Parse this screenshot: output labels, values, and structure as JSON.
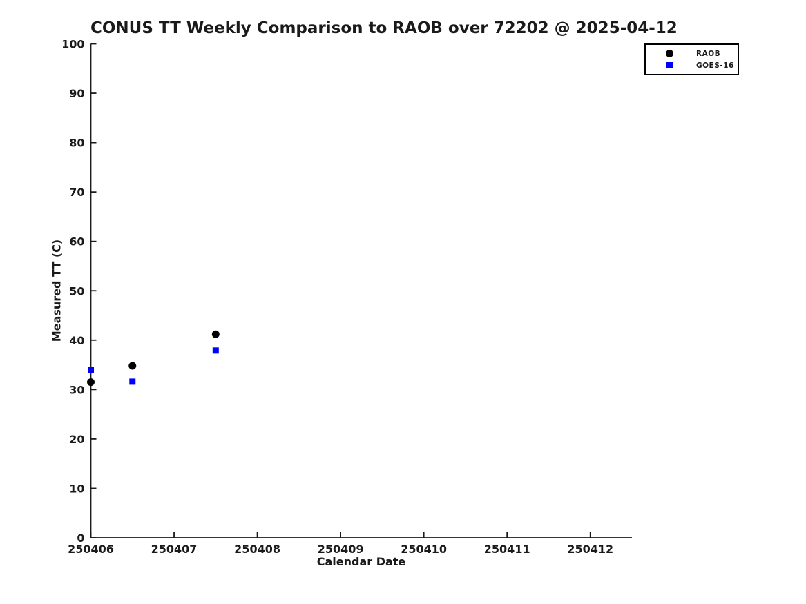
{
  "chart_data": {
    "type": "scatter",
    "title": "CONUS TT Weekly Comparison to RAOB over 72202 @ 2025-04-12",
    "xlabel": "Calendar Date",
    "ylabel": "Measured TT (C)",
    "xlim": [
      250406,
      250412.5
    ],
    "ylim": [
      0,
      100
    ],
    "xticks": [
      250406,
      250407,
      250408,
      250409,
      250410,
      250411,
      250412
    ],
    "yticks": [
      0,
      10,
      20,
      30,
      40,
      50,
      60,
      70,
      80,
      90,
      100
    ],
    "grid": false,
    "legend_position": "top-right",
    "axis_color": "#1a1a1a",
    "background_color": "#ffffff",
    "series": [
      {
        "name": "RAOB",
        "marker": "circle",
        "color": "#000000",
        "x": [
          250406.0,
          250406.5,
          250407.5
        ],
        "y": [
          31.5,
          34.8,
          41.2
        ]
      },
      {
        "name": "GOES-16",
        "marker": "square",
        "color": "#0000ff",
        "x": [
          250406.0,
          250406.5,
          250407.5
        ],
        "y": [
          34.0,
          31.6,
          37.9
        ]
      }
    ]
  }
}
